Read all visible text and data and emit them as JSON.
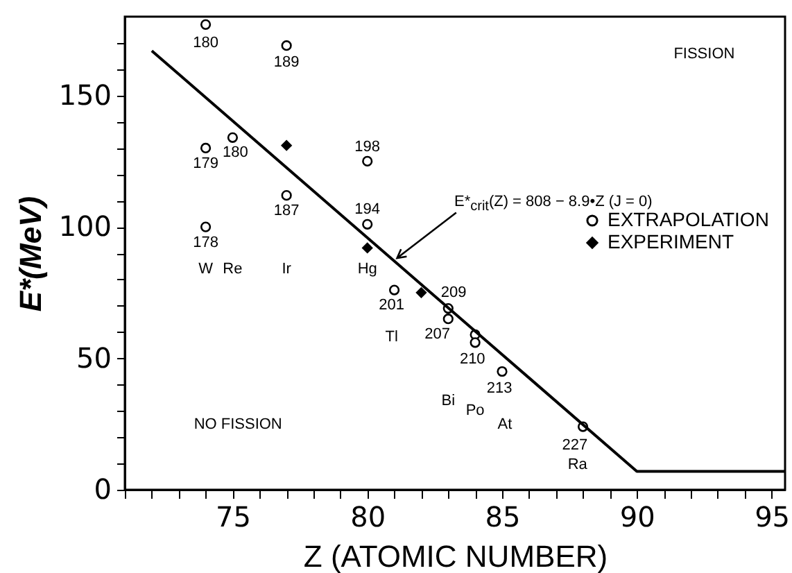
{
  "chart_data": {
    "type": "scatter",
    "xlabel": "Z (ATOMIC NUMBER)",
    "ylabel": "E*(MeV)",
    "xlim": [
      71,
      95.5
    ],
    "ylim": [
      0,
      180
    ],
    "xticks": [
      {
        "value": 71,
        "label": null
      },
      {
        "value": 72,
        "label": null
      },
      {
        "value": 73,
        "label": null
      },
      {
        "value": 74,
        "label": null
      },
      75,
      {
        "value": 76,
        "label": null
      },
      {
        "value": 77,
        "label": null
      },
      {
        "value": 78,
        "label": null
      },
      {
        "value": 79,
        "label": null
      },
      80,
      {
        "value": 81,
        "label": null
      },
      {
        "value": 82,
        "label": null
      },
      {
        "value": 83,
        "label": null
      },
      {
        "value": 84,
        "label": null
      },
      85,
      {
        "value": 86,
        "label": null
      },
      {
        "value": 87,
        "label": null
      },
      {
        "value": 88,
        "label": null
      },
      {
        "value": 89,
        "label": null
      },
      90,
      {
        "value": 91,
        "label": null
      },
      {
        "value": 92,
        "label": null
      },
      {
        "value": 93,
        "label": null
      },
      {
        "value": 94,
        "label": null
      },
      95
    ],
    "yticks": [
      0,
      {
        "value": 10,
        "label": null
      },
      {
        "value": 20,
        "label": null
      },
      {
        "value": 30,
        "label": null
      },
      {
        "value": 40,
        "label": null
      },
      50,
      {
        "value": 60,
        "label": null
      },
      {
        "value": 70,
        "label": null
      },
      {
        "value": 80,
        "label": null
      },
      {
        "value": 90,
        "label": null
      },
      100,
      {
        "value": 110,
        "label": null
      },
      {
        "value": 120,
        "label": null
      },
      {
        "value": 130,
        "label": null
      },
      {
        "value": 140,
        "label": null
      },
      150,
      {
        "value": 160,
        "label": null
      },
      {
        "value": 170,
        "label": null
      }
    ],
    "legend": "right",
    "grid": false,
    "series": [
      {
        "name": "EXTRAPOLATION",
        "color": "#000000",
        "marker": "circle",
        "x": [
          74,
          74,
          74,
          75,
          77,
          77,
          80,
          80,
          81,
          83,
          83,
          84,
          84,
          85,
          88
        ],
        "values": [
          177,
          130,
          100,
          134,
          169,
          112,
          125,
          101,
          76,
          69,
          65,
          59,
          56,
          45,
          24
        ]
      },
      {
        "name": "EXPERIMENT",
        "color": "#000000",
        "marker": "diamond",
        "x": [
          77,
          80,
          82
        ],
        "values": [
          131,
          92,
          75
        ]
      },
      {
        "type": "line",
        "color": "#000000",
        "marker": "none",
        "x": [
          72,
          90,
          95.5
        ],
        "values": [
          167,
          7,
          7
        ]
      }
    ],
    "annotations": [
      "180",
      "179",
      "178",
      "W",
      "180",
      "Re",
      "189",
      "187",
      "Ir",
      "198",
      "194",
      "Hg",
      "201",
      "Tl",
      "209",
      "207",
      "Bi",
      "210",
      "Po",
      "213",
      "At",
      "227",
      "Ra",
      "FISSION",
      "NO FISSION",
      {
        "text": "E*$_{crit}$(Z) = 808 − 8.9•Z  (J = 0)",
        "x": 81,
        "y": 87.1
      }
    ]
  }
}
